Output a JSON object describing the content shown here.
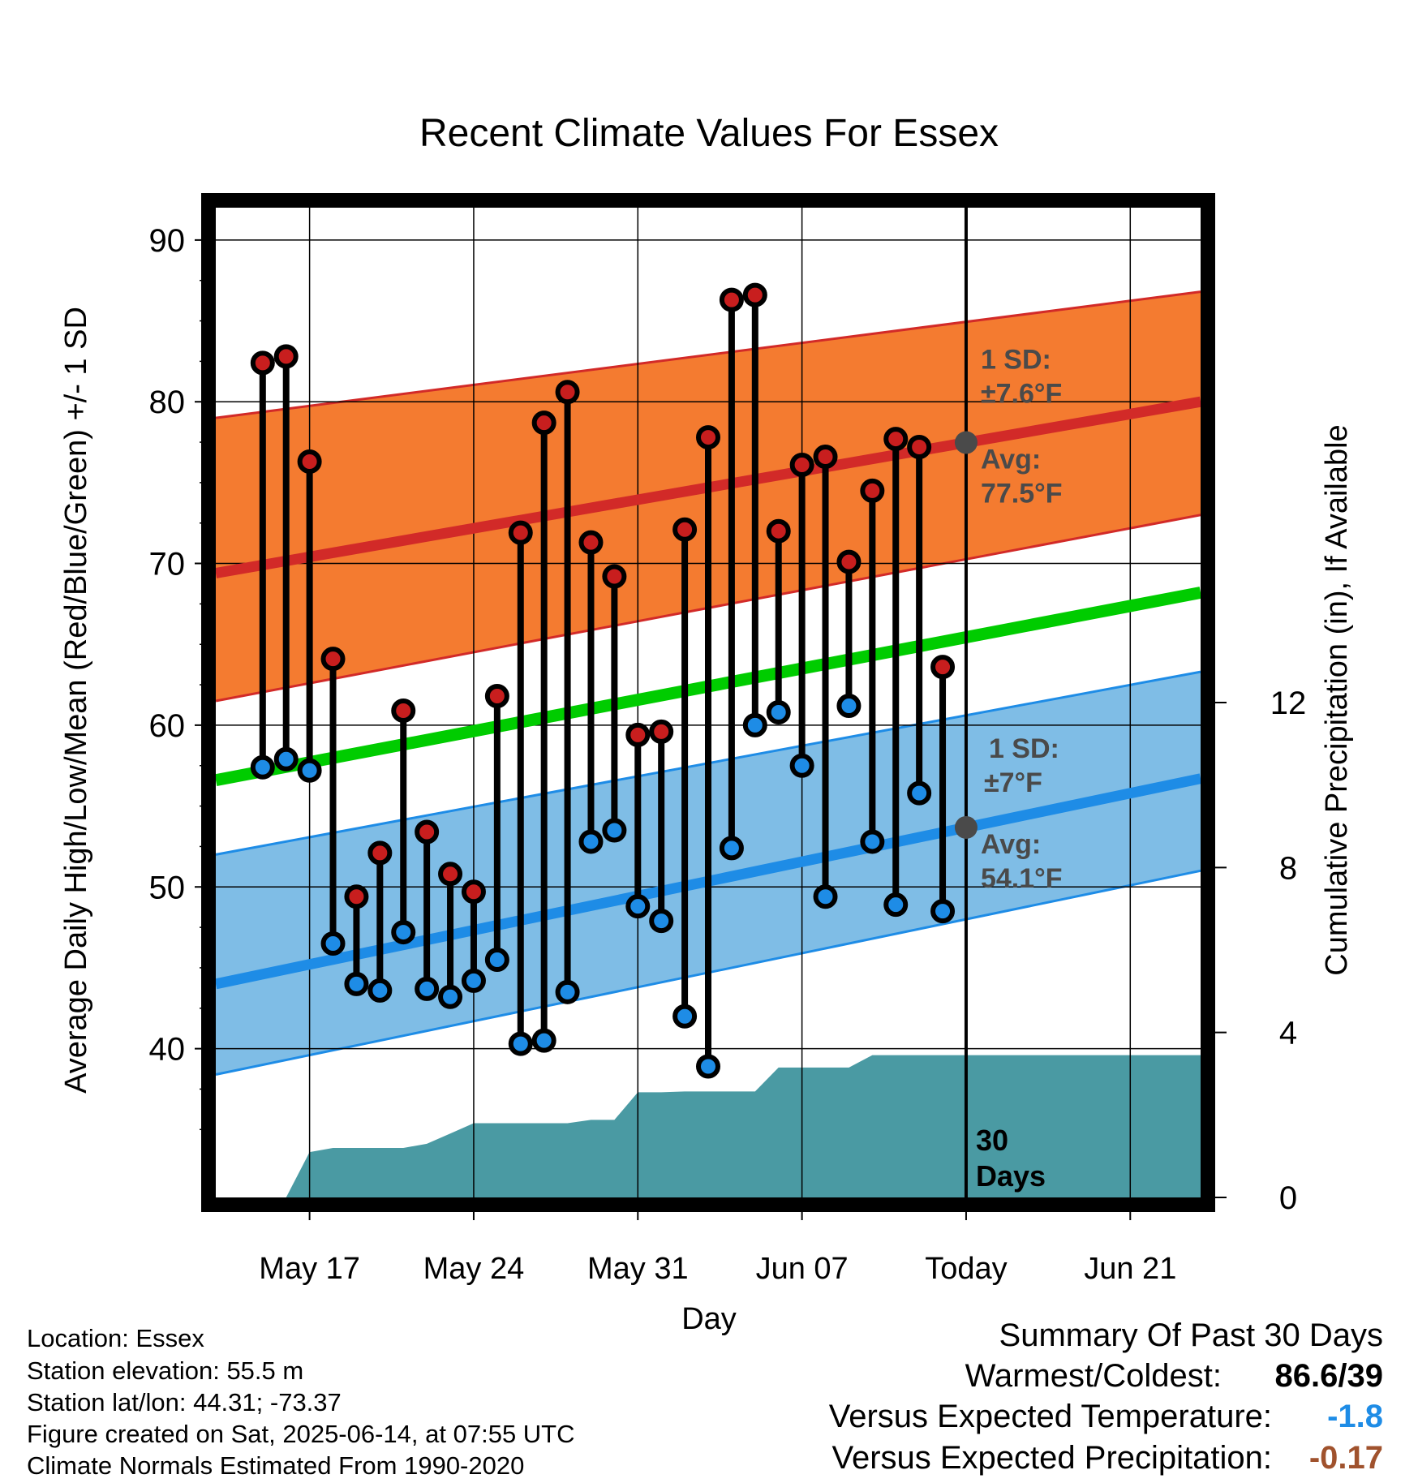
{
  "chart_data": {
    "type": "line",
    "title": "Recent Climate Values For Essex",
    "xlabel": "Day",
    "ylabel": "Average Daily High/Low/Mean (Red/Blue/Green) +/- 1 SD",
    "ylabel_right": "Cumulative Precipitation (in), If Available",
    "ylim": [
      30.8,
      92
    ],
    "y_ticks": [
      40,
      50,
      60,
      70,
      80,
      90
    ],
    "y2lim": [
      0,
      24
    ],
    "y2_ticks": [
      0,
      4,
      8,
      12
    ],
    "xlim": [
      "2025-05-13",
      "2025-06-24"
    ],
    "x_ticks": [
      {
        "date": "2025-05-17",
        "label": "May 17"
      },
      {
        "date": "2025-05-24",
        "label": "May 24"
      },
      {
        "date": "2025-05-31",
        "label": "May 31"
      },
      {
        "date": "2025-06-07",
        "label": "Jun 07"
      },
      {
        "date": "2025-06-14",
        "label": "Today"
      },
      {
        "date": "2025-06-21",
        "label": "Jun 21"
      }
    ],
    "grid": true,
    "today": "2025-06-14",
    "period_label": [
      "30",
      "Days"
    ],
    "normal_high": {
      "start_date": "2025-05-13",
      "end_date": "2025-06-24",
      "avg": [
        69.4,
        80.0
      ],
      "upper": [
        79.0,
        86.8
      ],
      "lower": [
        61.5,
        73.0
      ]
    },
    "normal_mean": {
      "avg": [
        56.6,
        68.2
      ]
    },
    "normal_low": {
      "avg": [
        44.0,
        56.7
      ],
      "upper": [
        52.0,
        63.3
      ],
      "lower": [
        38.4,
        51.0
      ]
    },
    "high_annotation": {
      "sd_label": "1 SD:",
      "sd_value": "±7.6°F",
      "avg_label": "Avg:",
      "avg_value": "77.5°F",
      "avg": 77.5
    },
    "low_annotation": {
      "sd_label": "1 SD:",
      "sd_value": "±7°F",
      "avg_label": "Avg:",
      "avg_value": "54.1°F",
      "avg": 54.1
    },
    "series": [
      {
        "name": "High",
        "color": "#c81e1e",
        "dates": [
          "2025-05-15",
          "2025-05-16",
          "2025-05-17",
          "2025-05-18",
          "2025-05-19",
          "2025-05-20",
          "2025-05-21",
          "2025-05-22",
          "2025-05-23",
          "2025-05-24",
          "2025-05-25",
          "2025-05-26",
          "2025-05-27",
          "2025-05-28",
          "2025-05-29",
          "2025-05-30",
          "2025-05-31",
          "2025-06-01",
          "2025-06-02",
          "2025-06-03",
          "2025-06-04",
          "2025-06-05",
          "2025-06-06",
          "2025-06-07",
          "2025-06-08",
          "2025-06-09",
          "2025-06-10",
          "2025-06-11",
          "2025-06-12",
          "2025-06-13"
        ],
        "values": [
          82.4,
          82.8,
          76.3,
          64.1,
          49.4,
          52.1,
          60.9,
          53.4,
          50.8,
          49.7,
          61.8,
          71.9,
          78.7,
          80.6,
          71.3,
          69.2,
          59.4,
          59.6,
          72.1,
          77.8,
          86.3,
          86.6,
          72.0,
          76.1,
          76.6,
          70.1,
          74.5,
          77.7,
          77.2,
          63.6
        ]
      },
      {
        "name": "Low",
        "color": "#1e8ce6",
        "dates": [
          "2025-05-15",
          "2025-05-16",
          "2025-05-17",
          "2025-05-18",
          "2025-05-19",
          "2025-05-20",
          "2025-05-21",
          "2025-05-22",
          "2025-05-23",
          "2025-05-24",
          "2025-05-25",
          "2025-05-26",
          "2025-05-27",
          "2025-05-28",
          "2025-05-29",
          "2025-05-30",
          "2025-05-31",
          "2025-06-01",
          "2025-06-02",
          "2025-06-03",
          "2025-06-04",
          "2025-06-05",
          "2025-06-06",
          "2025-06-07",
          "2025-06-08",
          "2025-06-09",
          "2025-06-10",
          "2025-06-11",
          "2025-06-12",
          "2025-06-13"
        ],
        "values": [
          57.4,
          57.9,
          57.2,
          46.5,
          44.0,
          43.6,
          47.2,
          43.7,
          43.2,
          44.2,
          45.5,
          40.3,
          40.5,
          43.5,
          52.8,
          53.5,
          48.8,
          47.9,
          42.0,
          38.9,
          52.4,
          60.0,
          60.8,
          57.5,
          49.4,
          61.2,
          52.8,
          48.9,
          55.8,
          48.5
        ]
      },
      {
        "name": "Cumulative Precipitation",
        "dates": [
          "2025-05-16",
          "2025-05-17",
          "2025-05-18",
          "2025-05-19",
          "2025-05-20",
          "2025-05-21",
          "2025-05-22",
          "2025-05-23",
          "2025-05-24",
          "2025-05-25",
          "2025-05-26",
          "2025-05-27",
          "2025-05-28",
          "2025-05-29",
          "2025-05-30",
          "2025-05-31",
          "2025-06-01",
          "2025-06-02",
          "2025-06-03",
          "2025-06-04",
          "2025-06-05",
          "2025-06-06",
          "2025-06-07",
          "2025-06-08",
          "2025-06-09",
          "2025-06-10",
          "2025-06-11",
          "2025-06-12",
          "2025-06-13",
          "2025-06-14",
          "2025-06-24"
        ],
        "values": [
          0.0,
          1.1,
          1.2,
          1.2,
          1.2,
          1.2,
          1.3,
          1.55,
          1.8,
          1.8,
          1.8,
          1.8,
          1.8,
          1.88,
          1.88,
          2.55,
          2.55,
          2.57,
          2.57,
          2.57,
          2.57,
          3.15,
          3.15,
          3.15,
          3.15,
          3.45,
          3.45,
          3.45,
          3.45,
          3.45,
          3.45
        ]
      }
    ]
  },
  "info": {
    "location": "Location: Essex",
    "elevation": "Station elevation: 55.5 m",
    "latlon": "Station lat/lon: 44.31; -73.37",
    "created": "Figure created on Sat, 2025-06-14, at 07:55 UTC",
    "normals": "Climate Normals Estimated From 1990-2020"
  },
  "summary": {
    "title": "Summary Of Past 30 Days",
    "warmest_label": "Warmest/Coldest:",
    "warmest_value": "86.6/39",
    "temp_label": "Versus Expected Temperature:",
    "temp_value": "-1.8",
    "temp_color": "#1e8ce6",
    "precip_label": "Versus Expected Precipitation:",
    "precip_value": "-0.17",
    "precip_color": "#a0522d"
  },
  "colors": {
    "high_band": "#f47b30",
    "high_line": "#d22a28",
    "low_band": "#7fbde6",
    "low_line": "#1e8ce6",
    "mean_line": "#00cc00",
    "precip_fill": "#4a9aa3",
    "annotation": "#4a4a4a"
  }
}
